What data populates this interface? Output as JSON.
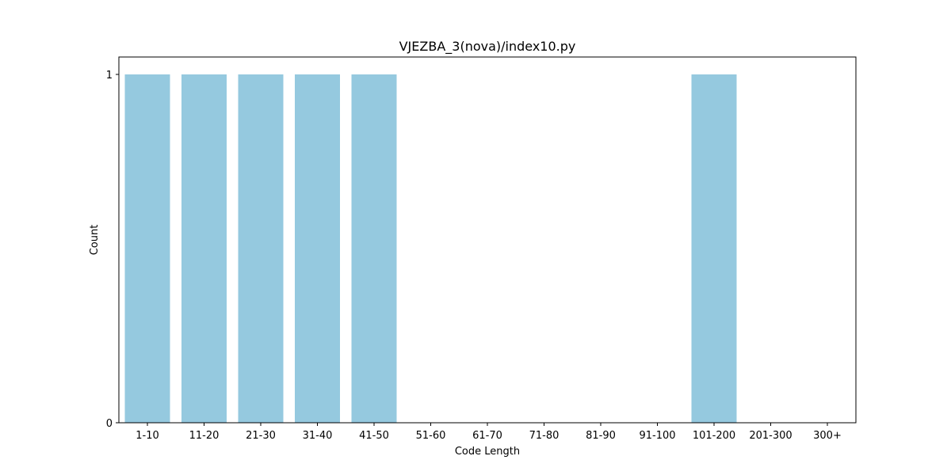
{
  "chart_data": {
    "type": "bar",
    "title": "VJEZBA_3(nova)/index10.py",
    "xlabel": "Code Length",
    "ylabel": "Count",
    "categories": [
      "1-10",
      "11-20",
      "21-30",
      "31-40",
      "41-50",
      "51-60",
      "61-70",
      "71-80",
      "81-90",
      "91-100",
      "101-200",
      "201-300",
      "300+"
    ],
    "values": [
      1,
      1,
      1,
      1,
      1,
      0,
      0,
      0,
      0,
      0,
      1,
      0,
      0
    ],
    "ylim": [
      0,
      1.05
    ],
    "yticks": [
      "0",
      "1"
    ],
    "grid": false,
    "legend": "none",
    "bar_color": "#95c9df"
  }
}
